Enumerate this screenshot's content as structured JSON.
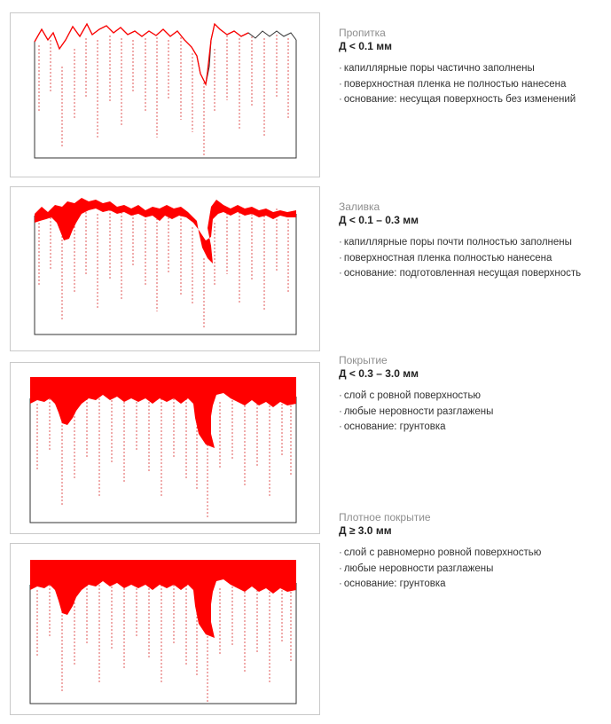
{
  "colors": {
    "coating": "#ff0000",
    "pores": "#e05a5a",
    "frame": "#c9c9c9",
    "outline": "#333333"
  },
  "sections": [
    {
      "title": "Пропитка",
      "thickness": "Д < 0.1 мм",
      "bullets": [
        "капиллярные поры частично заполнены",
        "поверхностная пленка не полностью нанесена",
        "основание: несущая поверхность без изменений"
      ]
    },
    {
      "title": "Заливка",
      "thickness": "Д < 0.1 – 0.3 мм",
      "bullets": [
        "капиллярные поры почти полностью заполнены",
        "поверхностная пленка полностью нанесена",
        "основание: подготовленная несущая поверхность"
      ]
    },
    {
      "title": "Покрытие",
      "thickness": "Д < 0.3 – 3.0 мм",
      "bullets": [
        "слой с ровной поверхностью",
        "любые неровности разглажены",
        "основание: грунтовка"
      ]
    },
    {
      "title": "Плотное покрытие",
      "thickness": "Д ≥ 3.0 мм",
      "bullets": [
        "слой с равномерно ровной поверхностью",
        "любые неровности разглажены",
        "основание: грунтовка"
      ]
    }
  ]
}
